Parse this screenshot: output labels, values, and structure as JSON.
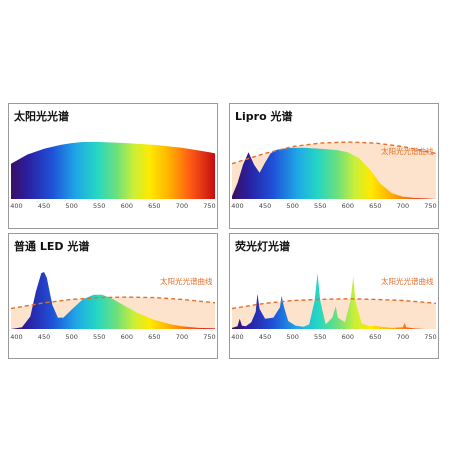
{
  "panels": [
    {
      "title": "太阳光光谱"
    },
    {
      "title": "Lipro 光谱",
      "ref_label": "太阳光光谱曲线"
    },
    {
      "title": "普通 LED 光谱",
      "ref_label": "太阳光光谱曲线"
    },
    {
      "title": "荧光灯光谱",
      "ref_label": "太阳光光谱曲线"
    }
  ],
  "colors": {
    "reference_line": "#e36f2a",
    "reference_fill": "#fde3cc",
    "frame": "#9a9a9a"
  },
  "chart_data": [
    {
      "type": "area",
      "title": "太阳光光谱",
      "x_ticks": [
        400,
        450,
        500,
        550,
        600,
        650,
        700,
        750
      ],
      "xlim": [
        390,
        760
      ],
      "ylim": [
        0,
        1
      ],
      "fill": "visible-spectrum-gradient",
      "x": [
        390,
        420,
        450,
        480,
        500,
        520,
        550,
        580,
        600,
        650,
        700,
        750,
        760
      ],
      "y": [
        0.62,
        0.78,
        0.88,
        0.95,
        0.98,
        1.0,
        1.0,
        0.99,
        0.98,
        0.95,
        0.9,
        0.82,
        0.8
      ]
    },
    {
      "type": "area",
      "title": "Lipro 光谱",
      "x_ticks": [
        400,
        450,
        500,
        550,
        600,
        650,
        700,
        750
      ],
      "xlim": [
        390,
        760
      ],
      "ylim": [
        0,
        1
      ],
      "fill": "visible-spectrum-gradient",
      "reference": {
        "name": "太阳光光谱曲线",
        "style": "dashed",
        "x": [
          390,
          450,
          500,
          550,
          600,
          650,
          700,
          750,
          760
        ],
        "y": [
          0.62,
          0.8,
          0.92,
          0.98,
          1.0,
          0.98,
          0.92,
          0.82,
          0.8
        ]
      },
      "x": [
        390,
        400,
        410,
        420,
        430,
        440,
        450,
        460,
        470,
        480,
        500,
        520,
        550,
        580,
        600,
        620,
        640,
        660,
        680,
        700,
        720,
        740,
        760
      ],
      "y": [
        0.05,
        0.28,
        0.6,
        0.82,
        0.6,
        0.46,
        0.64,
        0.8,
        0.86,
        0.88,
        0.9,
        0.9,
        0.88,
        0.86,
        0.82,
        0.72,
        0.52,
        0.26,
        0.1,
        0.04,
        0.02,
        0.01,
        0
      ]
    },
    {
      "type": "area",
      "title": "普通 LED 光谱",
      "x_ticks": [
        400,
        450,
        500,
        550,
        600,
        650,
        700,
        750
      ],
      "xlim": [
        390,
        760
      ],
      "ylim": [
        0,
        1
      ],
      "fill": "visible-spectrum-gradient",
      "reference": {
        "name": "太阳光光谱曲线",
        "style": "dashed",
        "x": [
          390,
          450,
          500,
          550,
          600,
          650,
          700,
          750,
          760
        ],
        "y": [
          0.36,
          0.46,
          0.52,
          0.55,
          0.56,
          0.55,
          0.52,
          0.47,
          0.46
        ]
      },
      "x": [
        390,
        410,
        425,
        435,
        445,
        450,
        455,
        465,
        475,
        485,
        500,
        520,
        540,
        555,
        570,
        590,
        620,
        650,
        680,
        700,
        730,
        760
      ],
      "y": [
        0.0,
        0.03,
        0.22,
        0.65,
        0.98,
        1.0,
        0.9,
        0.42,
        0.2,
        0.2,
        0.34,
        0.52,
        0.6,
        0.6,
        0.55,
        0.44,
        0.28,
        0.16,
        0.08,
        0.05,
        0.02,
        0.01
      ]
    },
    {
      "type": "area",
      "title": "荧光灯光谱",
      "x_ticks": [
        400,
        450,
        500,
        550,
        600,
        650,
        700,
        750
      ],
      "xlim": [
        390,
        760
      ],
      "ylim": [
        0,
        1
      ],
      "fill": "visible-spectrum-gradient",
      "reference": {
        "name": "太阳光光谱曲线",
        "style": "dashed",
        "x": [
          390,
          450,
          500,
          550,
          600,
          650,
          700,
          750,
          760
        ],
        "y": [
          0.36,
          0.45,
          0.5,
          0.52,
          0.53,
          0.52,
          0.5,
          0.46,
          0.45
        ]
      },
      "x": [
        390,
        400,
        404,
        408,
        415,
        425,
        433,
        436,
        440,
        450,
        465,
        477,
        480,
        484,
        492,
        505,
        520,
        530,
        540,
        545,
        550,
        560,
        572,
        578,
        582,
        595,
        605,
        610,
        614,
        625,
        640,
        650,
        660,
        680,
        700,
        703,
        706,
        720,
        740,
        760
      ],
      "y": [
        0.02,
        0.05,
        0.18,
        0.06,
        0.05,
        0.12,
        0.3,
        0.62,
        0.35,
        0.18,
        0.2,
        0.38,
        0.58,
        0.4,
        0.14,
        0.06,
        0.04,
        0.08,
        0.5,
        0.98,
        0.5,
        0.08,
        0.2,
        0.4,
        0.2,
        0.12,
        0.5,
        0.92,
        0.48,
        0.1,
        0.05,
        0.06,
        0.04,
        0.02,
        0.03,
        0.11,
        0.03,
        0.01,
        0.0,
        0.0
      ]
    }
  ]
}
